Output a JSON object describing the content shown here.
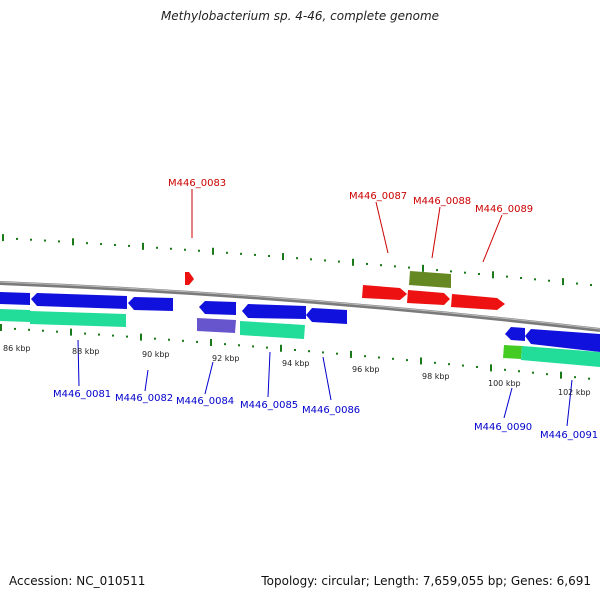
{
  "title": "Methylobacterium sp. 4-46, complete genome",
  "footer": {
    "accession": "Accession: NC_010511",
    "summary": "Topology: circular; Length: 7,659,055 bp; Genes: 6,691"
  },
  "colors": {
    "backbone": "#7a7a7a",
    "forward_gene_label": "#cc0000",
    "reverse_gene_label": "#0000cc",
    "tick": "#1a7a1a",
    "gene_red": "#ee1111",
    "gene_blue": "#1111dd",
    "gene_green": "#22dd99",
    "gene_olive": "#668822",
    "gene_purple": "#6655cc"
  },
  "scale_labels": [
    "86 kbp",
    "88 kbp",
    "90 kbp",
    "92 kbp",
    "94 kbp",
    "96 kbp",
    "98 kbp",
    "100 kbp",
    "102 kbp"
  ],
  "gene_labels": {
    "top": [
      "M446_0083",
      "M446_0087",
      "M446_0088",
      "M446_0089"
    ],
    "bottom": [
      "M446_0081",
      "M446_0082",
      "M446_0084",
      "M446_0085",
      "M446_0086",
      "M446_0090",
      "M446_0091"
    ]
  }
}
